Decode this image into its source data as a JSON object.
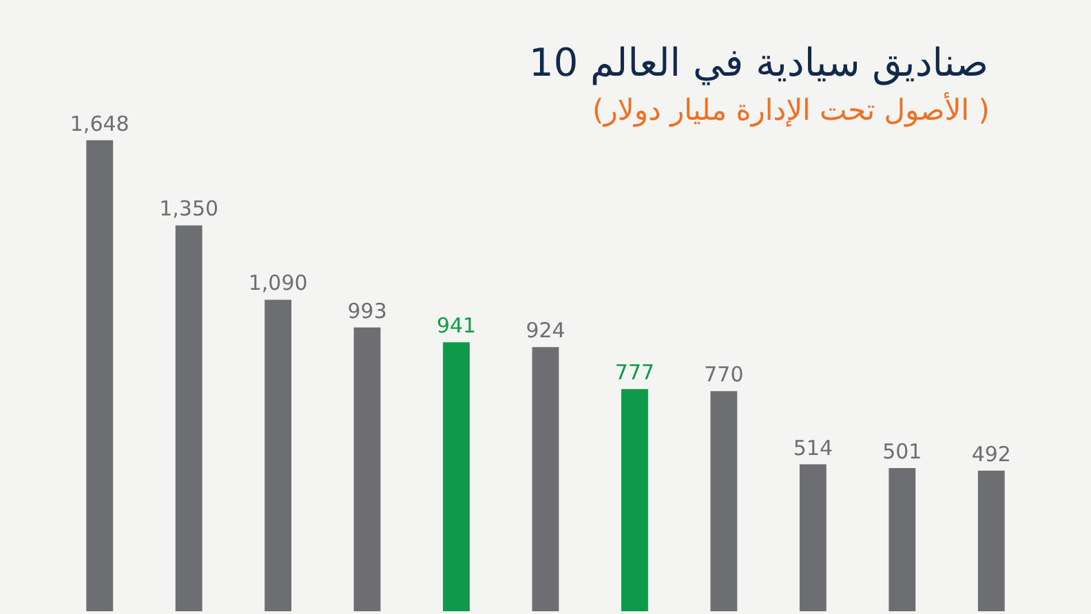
{
  "chart_data": {
    "type": "bar",
    "title": "10 صناديق سيادية في العالم",
    "subtitle": "(الأصول تحت الإدارة مليار دولار )",
    "categories": [
      null,
      null,
      null,
      null,
      null,
      null,
      null,
      null,
      null,
      null,
      null
    ],
    "values": [
      1648,
      1350,
      1090,
      993,
      941,
      924,
      777,
      770,
      514,
      501,
      492
    ],
    "colors": [
      "#6d6e71",
      "#6d6e71",
      "#6d6e71",
      "#6d6e71",
      "#0e9a48",
      "#6d6e71",
      "#0e9a48",
      "#6d6e71",
      "#6d6e71",
      "#6d6e71",
      "#6d6e71"
    ],
    "value_labels": [
      "1,648",
      "1,350",
      "1,090",
      "993",
      "941",
      "924",
      "777",
      "770",
      "514",
      "501",
      "492"
    ],
    "grid": false,
    "tick_labels": false
  }
}
